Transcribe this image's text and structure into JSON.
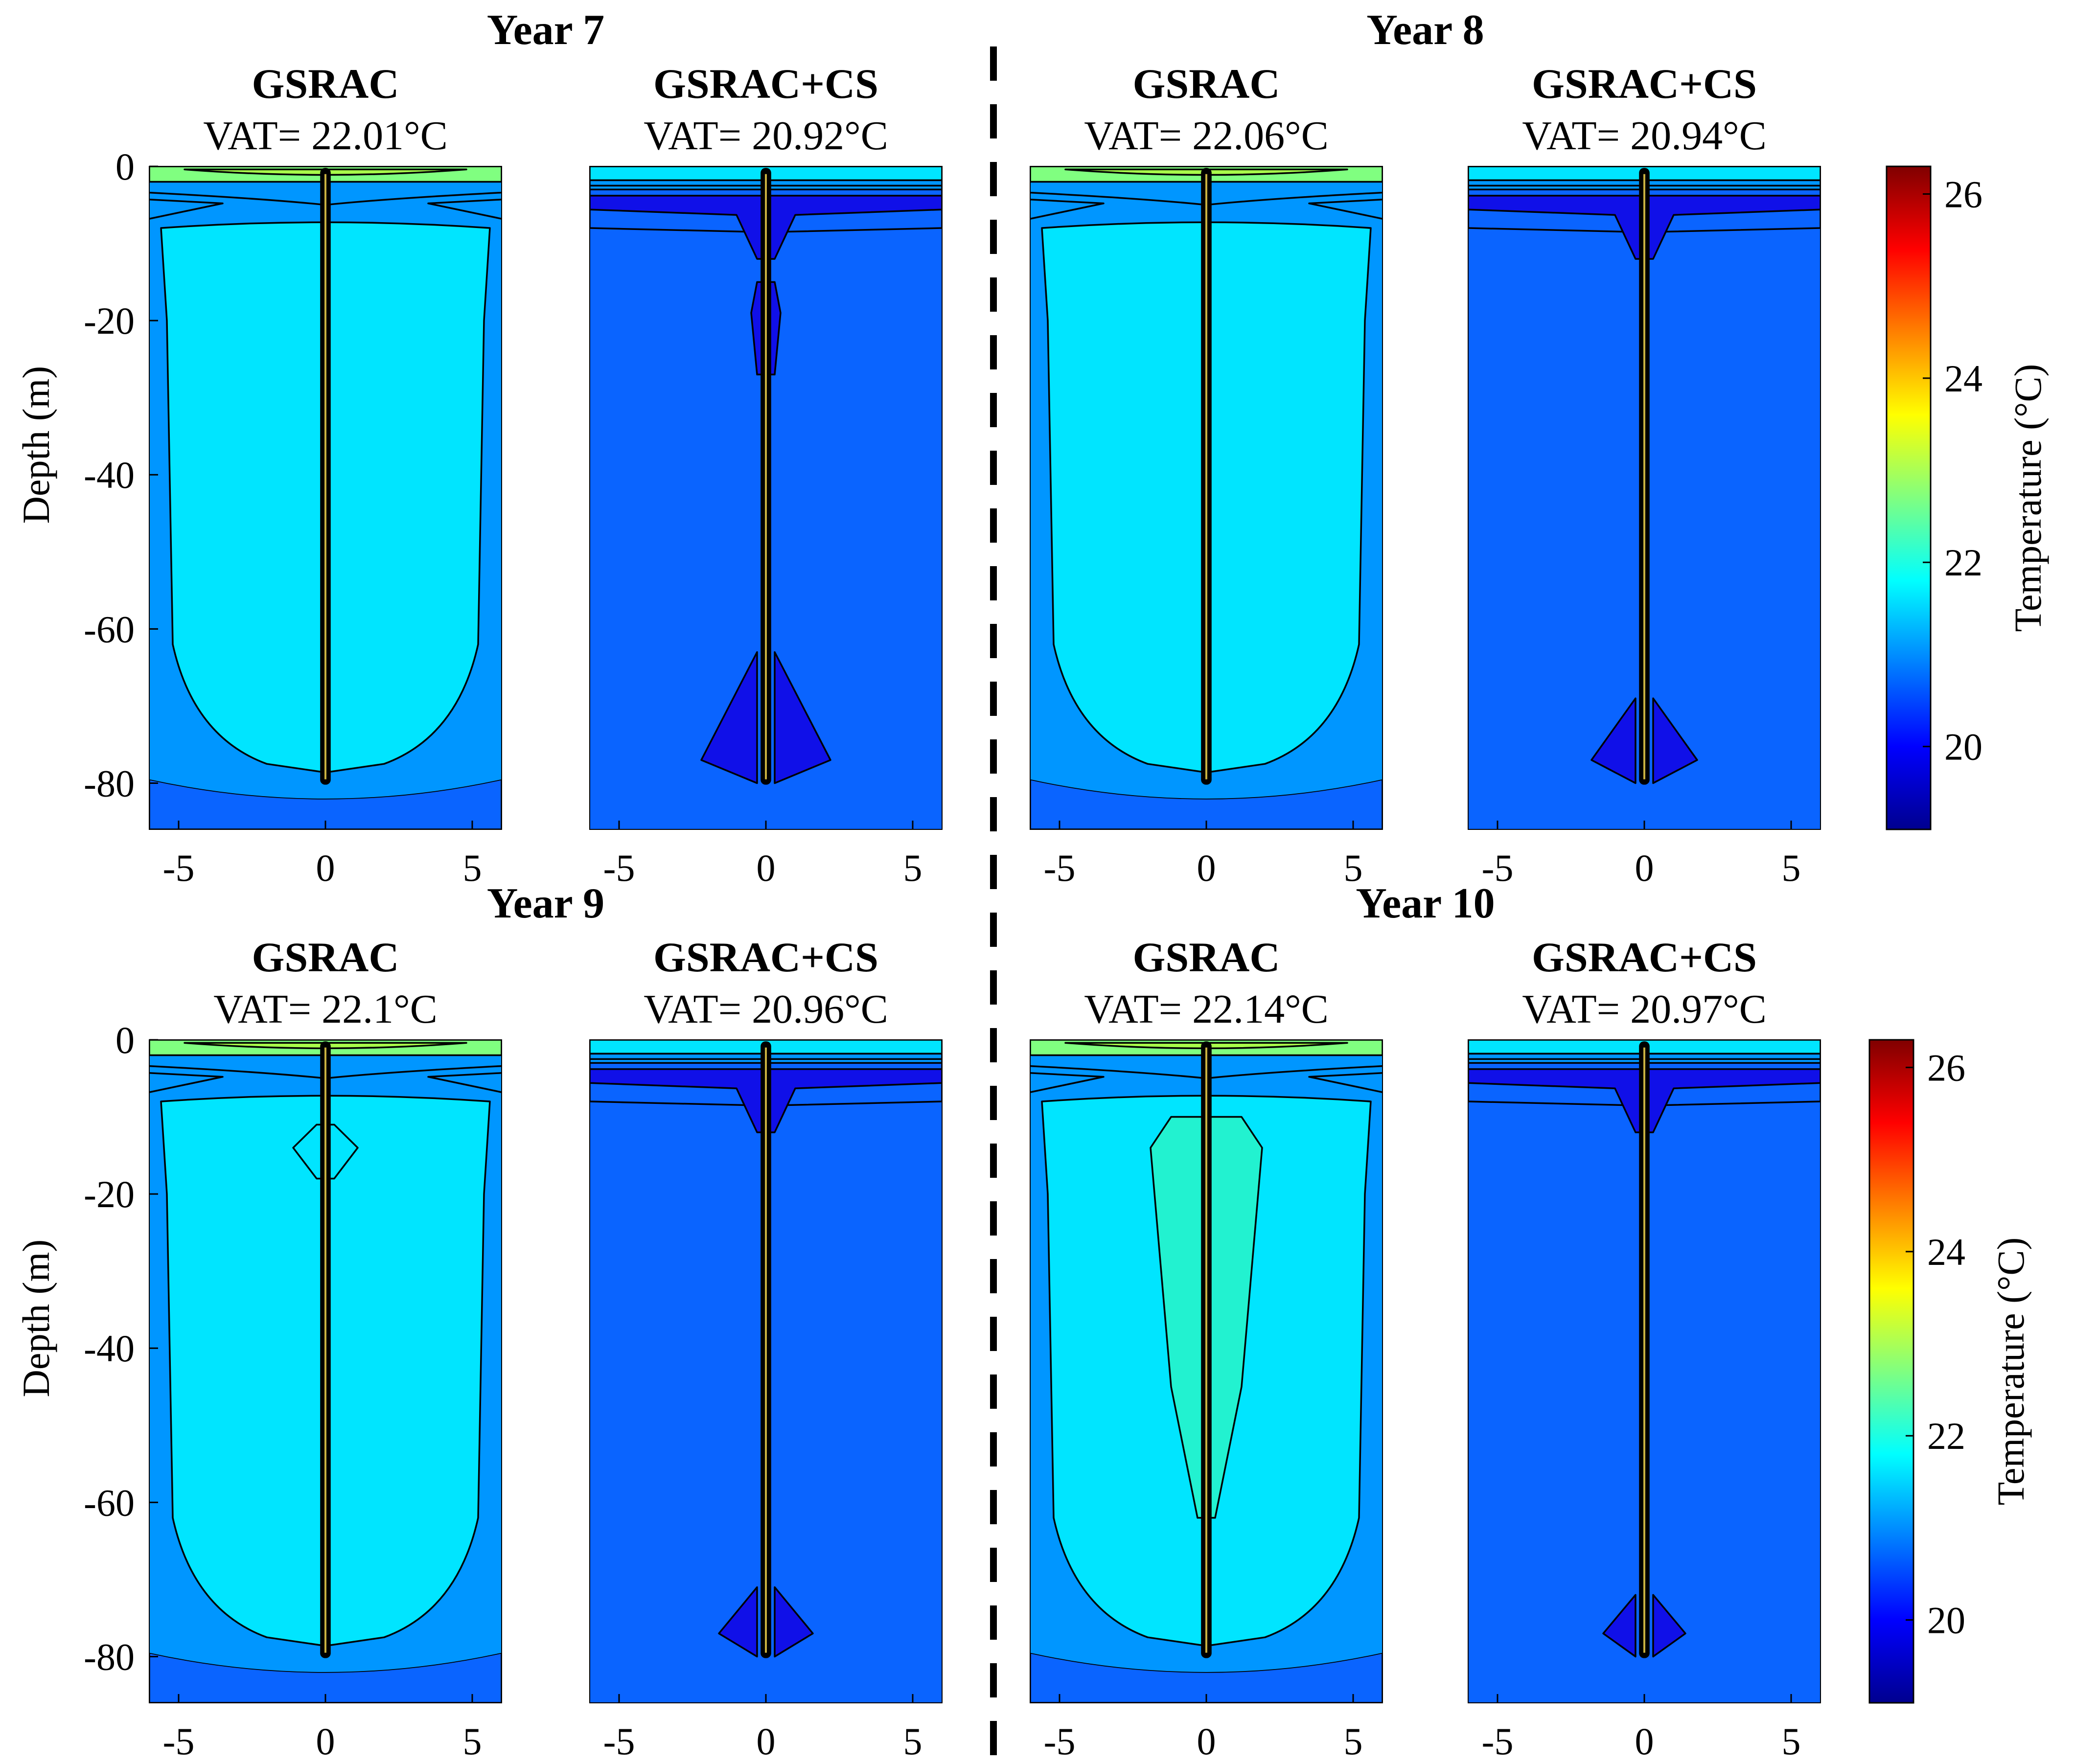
{
  "chart_data": {
    "type": "heatmap",
    "figure_kind": "temperature contour maps (depth vs radial distance)",
    "x_ticks": [
      -5,
      0,
      5
    ],
    "y_ticks": [
      0,
      -20,
      -40,
      -60,
      -80
    ],
    "xlim": [
      -6,
      6
    ],
    "ylim": [
      -86,
      0
    ],
    "ylabel": "Depth (m)",
    "colorbar": {
      "label": "Temperature (°C)",
      "ticks": [
        20,
        22,
        24,
        26
      ],
      "range": [
        19.1,
        26.3
      ],
      "colors": [
        "#00008f",
        "#0000ff",
        "#0080ff",
        "#00ffff",
        "#80ff80",
        "#ffff00",
        "#ff8000",
        "#ff0000",
        "#800000"
      ]
    },
    "field_colors": {
      "cool_core": "#1010e8",
      "ground": "#0a64ff",
      "mid": "#0096ff",
      "warm_zone": "#00e5ff",
      "warmer_zone": "#22f2d0",
      "surface_warm": "#80ff80",
      "surface_hot": "#a8ff4a"
    },
    "years": [
      {
        "title": "Year 7",
        "panels": [
          {
            "name": "GSRAC",
            "vat_text": "VAT= 22.01°C",
            "vat": 22.01
          },
          {
            "name": "GSRAC+CS",
            "vat_text": "VAT= 20.92°C",
            "vat": 20.92
          }
        ]
      },
      {
        "title": "Year 8",
        "panels": [
          {
            "name": "GSRAC",
            "vat_text": "VAT= 22.06°C",
            "vat": 22.06
          },
          {
            "name": "GSRAC+CS",
            "vat_text": "VAT= 20.94°C",
            "vat": 20.94
          }
        ]
      },
      {
        "title": "Year 9",
        "panels": [
          {
            "name": "GSRAC",
            "vat_text": "VAT= 22.1°C",
            "vat": 22.1
          },
          {
            "name": "GSRAC+CS",
            "vat_text": "VAT= 20.96°C",
            "vat": 20.96
          }
        ]
      },
      {
        "title": "Year 10",
        "panels": [
          {
            "name": "GSRAC",
            "vat_text": "VAT= 22.14°C",
            "vat": 22.14
          },
          {
            "name": "GSRAC+CS",
            "vat_text": "VAT= 20.97°C",
            "vat": 20.97
          }
        ]
      }
    ]
  }
}
